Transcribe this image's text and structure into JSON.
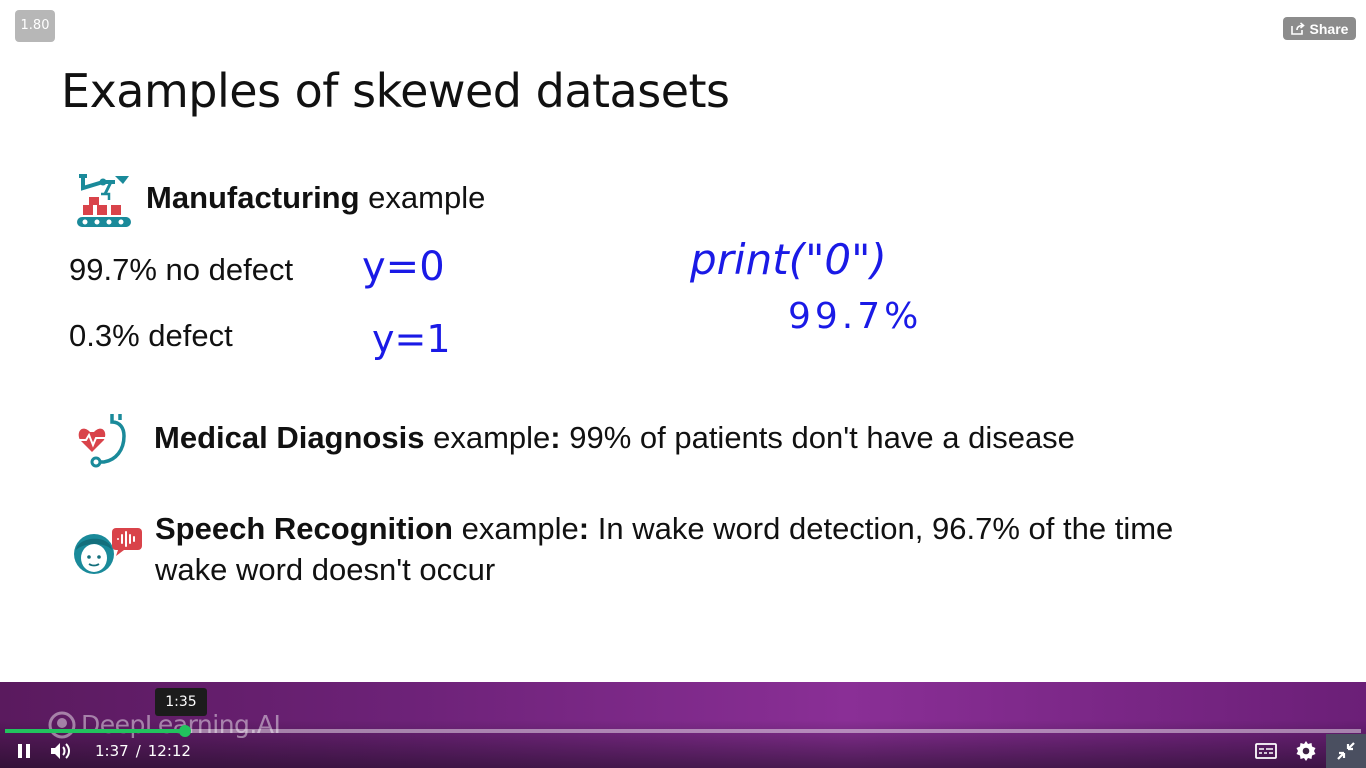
{
  "player": {
    "speed_badge": "1.80",
    "share_label": "Share",
    "watermark": "DeepLearning.AI",
    "hover_time": "1:35",
    "current_time": "1:37",
    "time_separator": "/",
    "duration": "12:12",
    "progress": 0.133,
    "colors": {
      "progress": "#22c35e",
      "bar": "#6d2278"
    },
    "icons": [
      "share-icon",
      "pause-icon",
      "volume-icon",
      "captions-icon",
      "settings-icon",
      "exit-fullscreen-icon"
    ]
  },
  "slide": {
    "title": "Examples of skewed datasets",
    "manufacturing": {
      "heading_bold": "Manufacturing",
      "heading_rest": " example",
      "line1": "99.7% no defect",
      "line2": "0.3%  defect"
    },
    "medical": {
      "heading_bold": "Medical Diagnosis",
      "heading_rest": " example",
      "colon": ":",
      "rest": " 99% of patients don't have a disease"
    },
    "speech": {
      "heading_bold": "Speech Recognition",
      "heading_rest": " example",
      "colon": ":",
      "rest_line1": " In wake word detection, 96.7% of the time",
      "rest_line2": "wake word doesn't occur"
    },
    "handwriting": {
      "y0": "y=0",
      "y1": "y=1",
      "print": "print(\"0\")",
      "pct": "99.7%",
      "color": "#1a1ae6"
    }
  }
}
